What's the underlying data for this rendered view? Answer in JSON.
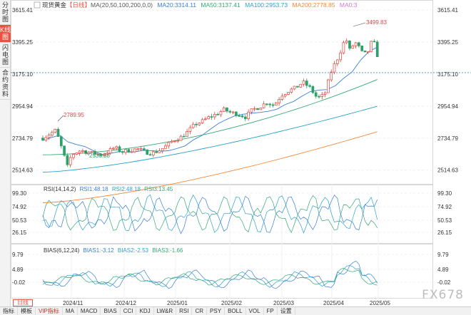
{
  "sidebar": {
    "tabs": [
      {
        "label": "分时图",
        "active": false
      },
      {
        "label": "K线图",
        "active": true
      },
      {
        "label": "闪电图",
        "active": false
      },
      {
        "label": "合约资料",
        "active": false
      }
    ]
  },
  "main_panel": {
    "title": "现货黄金",
    "period": "【日线】",
    "ma_label": "MA(20,50,100,200,0,0)",
    "ma_items": [
      {
        "label": "MA20:3314.11",
        "color": "#3b7ed6"
      },
      {
        "label": "MA50:3137.41",
        "color": "#33a873"
      },
      {
        "label": "MA100:2953.73",
        "color": "#2aa3c9"
      },
      {
        "label": "MA200:2778.85",
        "color": "#f08a3c"
      },
      {
        "label": "MA0:3",
        "color": "#d07bd0"
      }
    ],
    "y_ticks": [
      "3615.41",
      "3395.25",
      "3175.10",
      "2954.94",
      "2734.79",
      "2514.63"
    ],
    "y_values": [
      3615.41,
      3395.25,
      3175.1,
      2954.94,
      2734.79,
      2514.63
    ],
    "annotations": {
      "high": "3499.83",
      "local_high": "2789.95",
      "low": "2536.68"
    }
  },
  "rsi_panel": {
    "label": "RSI(14,14,2)",
    "items": [
      {
        "label": "RSI1:48.18",
        "color": "#3b7ed6"
      },
      {
        "label": "RSI2:48.18",
        "color": "#2aa3c9"
      },
      {
        "label": "RSI3:13.45",
        "color": "#33a873"
      }
    ],
    "ticks": [
      "99.30",
      "74.92",
      "50.53",
      "26.15"
    ]
  },
  "bias_panel": {
    "label": "BIAS(6,12,24)",
    "items": [
      {
        "label": "BIAS1:-3.12",
        "color": "#3b7ed6"
      },
      {
        "label": "BIAS2:-2.53",
        "color": "#2aa3c9"
      },
      {
        "label": "BIAS3:-1.66",
        "color": "#33a873"
      }
    ],
    "ticks": [
      "9.79",
      "4.89",
      "-0.02"
    ]
  },
  "x_ticks": [
    "2024/11",
    "2024/12",
    "2025/01",
    "2025/02",
    "2025/03",
    "2025/04",
    "2025/05"
  ],
  "period_button": "日线",
  "bottom_bar": [
    "指标",
    "模板",
    "VIP指标",
    "MA",
    "MACD",
    "BIAS",
    "CCI",
    "KDJ",
    "LW&R",
    "RSI",
    "CR",
    "PSY",
    "BOLL",
    "VOL",
    "FP",
    "设置"
  ],
  "watermark": "FX678",
  "chart_data": {
    "type": "candlestick",
    "x_ticks": [
      "2024/11",
      "2024/12",
      "2025/01",
      "2025/02",
      "2025/03",
      "2025/04",
      "2025/05"
    ],
    "ylim": [
      2420,
      3660
    ],
    "last_close_line": 3185,
    "annotated_high": 3499.83,
    "annotated_low": 2536.68,
    "annotated_local_high": 2789.95,
    "ma_series": [
      {
        "name": "MA200",
        "start": 2290,
        "end": 2778.85
      },
      {
        "name": "MA100",
        "start": 2500,
        "end": 2953.73
      },
      {
        "name": "MA50",
        "start": 2620,
        "end": 3137.41
      },
      {
        "name": "MA20",
        "start": 2700,
        "end": 3314.11
      }
    ]
  }
}
